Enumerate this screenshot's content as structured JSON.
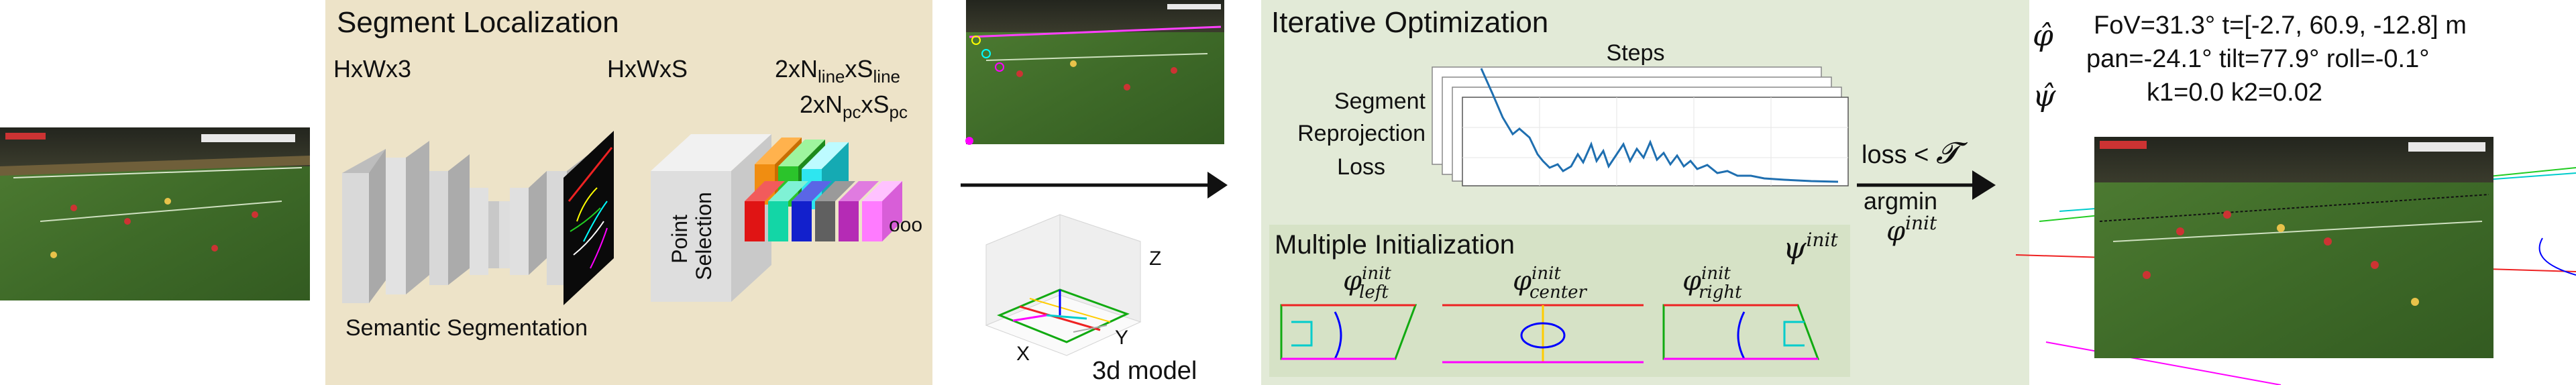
{
  "segment_localization": {
    "title": "Segment Localization",
    "input_dim": "HxWx3",
    "seg_dim": "HxWxS",
    "line_dim": {
      "prefix": "2xN",
      "sub1": "line",
      "mid": "xS",
      "sub2": "line"
    },
    "pc_dim": {
      "prefix": "2xN",
      "sub1": "pc",
      "mid": "xS",
      "sub2": "pc"
    },
    "point_selection_line1": "Point",
    "point_selection_line2": "Selection",
    "semantic_segmentation": "Semantic Segmentation",
    "ellipsis": "ooo"
  },
  "model3d": {
    "label": "3d model",
    "axis_x": "X",
    "axis_y": "Y",
    "axis_z": "Z"
  },
  "iterative_optimization": {
    "title": "Iterative Optimization",
    "steps": "Steps",
    "loss_line1": "Segment",
    "loss_line2": "Reprojection",
    "loss_line3": "Loss",
    "condition": "loss < ",
    "condition_symbol": "𝓣",
    "argmin": "argmin",
    "phi_init": "φ",
    "phi_init_sup": "init"
  },
  "multiple_initialization": {
    "title": "Multiple Initialization",
    "psi_init": "ψ",
    "psi_init_sup": "init",
    "inits": [
      {
        "symbol": "φ",
        "sup": "init",
        "sub": "left"
      },
      {
        "symbol": "φ",
        "sup": "init",
        "sub": "center"
      },
      {
        "symbol": "φ",
        "sup": "init",
        "sub": "right"
      }
    ]
  },
  "result": {
    "phi_hat": "φ̂",
    "psi_hat": "ψ̂",
    "line1": "FoV=31.3° t=[-2.7, 60.9, -12.8] m",
    "line2": "pan=-24.1° tilt=77.9° roll=-0.1°",
    "line3": "k1=0.0 k2=0.02"
  },
  "colors": {
    "seg_panel": "#ede3c8",
    "opt_panel": "#e2ead7",
    "init_panel": "#d6e2c6",
    "pitch_green": "#3f6b2a",
    "stand_dark": "#2b2d24",
    "loss_line": "#1f6fb0"
  },
  "icons": [
    "input-frame-image",
    "channel-stack",
    "output-frame-image",
    "arrow-right-icon",
    "pitch-3d-plot"
  ]
}
